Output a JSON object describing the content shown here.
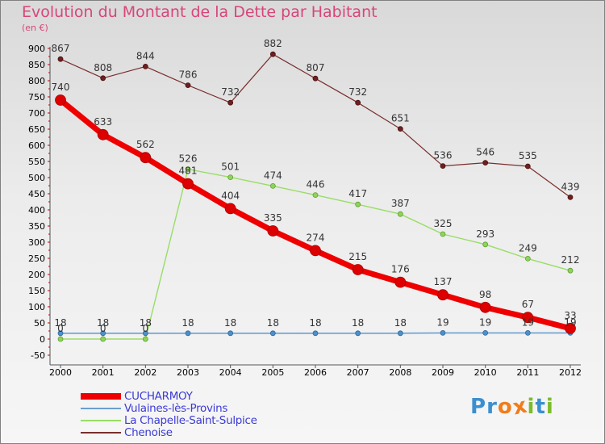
{
  "title": "Evolution du Montant de la Dette par Habitant",
  "subtitle": "(en €)",
  "logo": {
    "text": "Proxiti",
    "letter_colors": [
      "#3a8fd0",
      "#3a8fd0",
      "#f07c1a",
      "#f07c1a",
      "#7dbb2a",
      "#3a8fd0",
      "#7dbb2a"
    ]
  },
  "chart_data": {
    "type": "line",
    "x": [
      "2000",
      "2001",
      "2002",
      "2003",
      "2004",
      "2005",
      "2006",
      "2007",
      "2008",
      "2009",
      "2010",
      "2011",
      "2012"
    ],
    "ylim": [
      -50,
      900
    ],
    "yticks": [
      "-50",
      "0",
      "50",
      "100",
      "150",
      "200",
      "250",
      "300",
      "350",
      "400",
      "450",
      "500",
      "550",
      "600",
      "650",
      "700",
      "750",
      "800",
      "850",
      "900"
    ],
    "grid": false,
    "legend_position": "bottom-left",
    "series": [
      {
        "name": "CUCHARMOY",
        "color": "#ee0000",
        "values": [
          740,
          633,
          562,
          481,
          404,
          335,
          274,
          215,
          176,
          137,
          98,
          67,
          33
        ],
        "labels": [
          "740",
          "633",
          "562",
          "481",
          "404",
          "335",
          "274",
          "215",
          "176",
          "137",
          "98",
          "67",
          "33"
        ]
      },
      {
        "name": "Vulaines-lès-Provins",
        "color": "#6a9fd0",
        "values": [
          18,
          18,
          18,
          18,
          18,
          18,
          18,
          18,
          18,
          19,
          19,
          19,
          19
        ],
        "labels": [
          "18",
          "18",
          "18",
          "18",
          "18",
          "18",
          "18",
          "18",
          "18",
          "19",
          "19",
          "19",
          "19"
        ]
      },
      {
        "name": "La Chapelle-Saint-Sulpice",
        "color": "#99dd66",
        "values": [
          0,
          0,
          0,
          526,
          501,
          474,
          446,
          417,
          387,
          325,
          293,
          249,
          212
        ],
        "labels": [
          "0",
          "0",
          "0",
          "526",
          "501",
          "474",
          "446",
          "417",
          "387",
          "325",
          "293",
          "249",
          "212"
        ]
      },
      {
        "name": "Chenoise",
        "color": "#7a2e2e",
        "values": [
          867,
          808,
          844,
          786,
          732,
          882,
          807,
          732,
          651,
          536,
          546,
          535,
          439
        ],
        "labels": [
          "867",
          "808",
          "844",
          "786",
          "732",
          "882",
          "807",
          "732",
          "651",
          "536",
          "546",
          "535",
          "439"
        ]
      }
    ]
  }
}
